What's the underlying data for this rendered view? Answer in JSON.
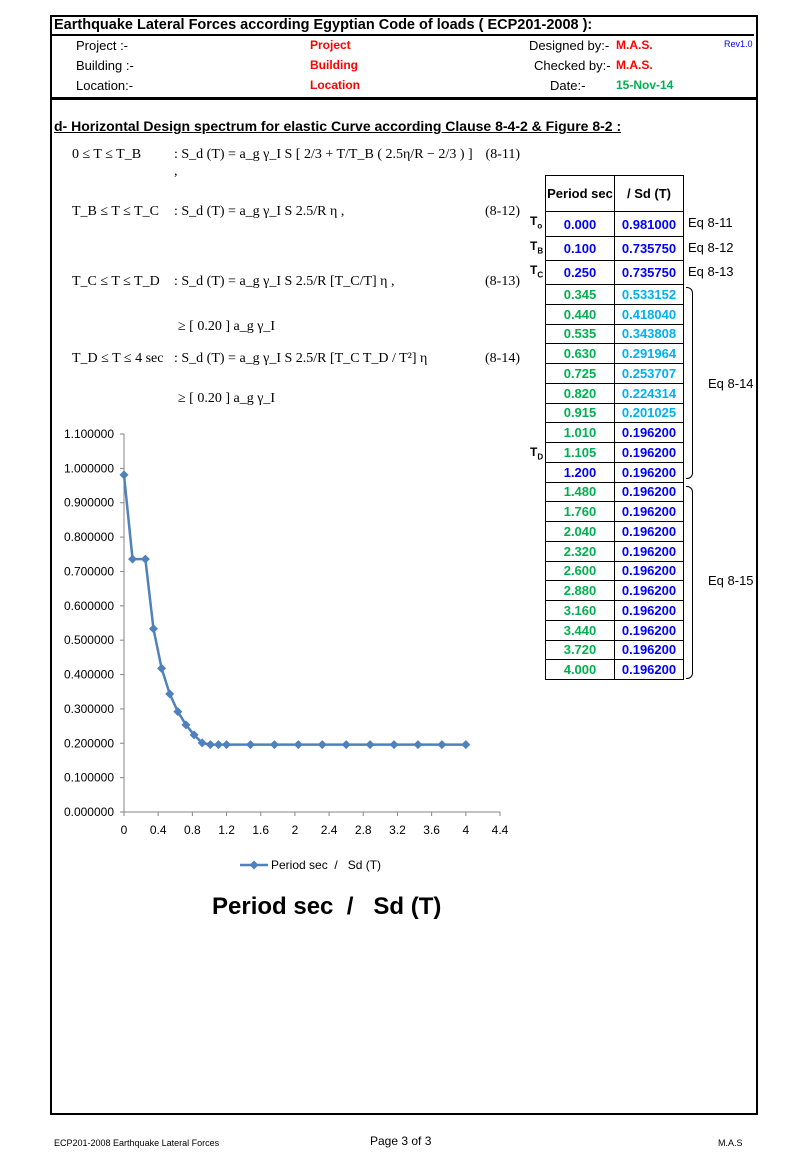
{
  "header": {
    "title": "Earthquake Lateral Forces according Egyptian Code of loads ( ECP201-2008 ):",
    "project_label": "Project :-",
    "project_value": "Project",
    "building_label": "Building :-",
    "building_value": "Building",
    "location_label": "Location:-",
    "location_value": "Location",
    "designed_label": "Designed by:-",
    "designed_value": "M.A.S.",
    "checked_label": "Checked by:-",
    "checked_value": "M.A.S.",
    "date_label": "Date:-",
    "date_value": "15-Nov-14",
    "rev": "Rev1.0"
  },
  "section_title": "d- Horizontal Design spectrum for elastic Curve according Clause 8-4-2 & Figure 8-2 :",
  "formulas": [
    {
      "cond": "0 ≤  T  ≤ T_B",
      "expr": ": S_d (T) = a_g γ_I S [ 2/3 + T/T_B ( 2.5η/R − 2/3 ) ] ,",
      "num": "(8-11)"
    },
    {
      "cond": "T_B ≤  T  ≤  T_C",
      "expr": ": S_d (T) = a_g γ_I S  2.5/R η  ,",
      "num": "(8-12)"
    },
    {
      "cond": "T_C ≤  T  ≤  T_D",
      "expr": ": S_d (T) = a_g γ_I S  2.5/R [T_C/T] η  ,",
      "num": "(8-13)"
    },
    {
      "cond": "",
      "expr": "≥ [ 0.20 ] a_g γ_I",
      "num": ""
    },
    {
      "cond": "T_D ≤  T  ≤ 4 sec",
      "expr": ": S_d (T) = a_g γ_I S  2.5/R [T_C T_D / T²] η",
      "num": "(8-14)"
    },
    {
      "cond": "",
      "expr": "≥ [ 0.20 ] a_g γ_I",
      "num": ""
    }
  ],
  "table": {
    "col1": "Period sec",
    "col2": "/  Sd (T)",
    "row_labels": [
      "To",
      "TB",
      "TC",
      "",
      "",
      "",
      "",
      "",
      "",
      "",
      "",
      "TD"
    ],
    "eq_labels": [
      "Eq 8-11",
      "Eq 8-12",
      "Eq 8-13"
    ],
    "brace_labels": [
      "Eq 8-14",
      "Eq 8-15"
    ]
  },
  "chart_data": {
    "type": "line",
    "title": "Period sec  /   Sd (T)",
    "x": [
      0,
      0.1,
      0.25,
      0.345,
      0.44,
      0.535,
      0.63,
      0.725,
      0.82,
      0.915,
      1.01,
      1.105,
      1.2,
      1.48,
      1.76,
      2.04,
      2.32,
      2.6,
      2.88,
      3.16,
      3.44,
      3.72,
      4.0
    ],
    "series": [
      {
        "name": "Period sec  /   Sd (T)",
        "values": [
          0.981,
          0.73575,
          0.73575,
          0.533152,
          0.41804,
          0.343808,
          0.291964,
          0.253707,
          0.224314,
          0.201025,
          0.1962,
          0.1962,
          0.1962,
          0.1962,
          0.1962,
          0.1962,
          0.1962,
          0.1962,
          0.1962,
          0.1962,
          0.1962,
          0.1962,
          0.1962
        ]
      }
    ],
    "xlim": [
      0,
      4.4
    ],
    "ylim": [
      0,
      1.1
    ],
    "xticks": [
      "0",
      "0.4",
      "0.8",
      "1.2",
      "1.6",
      "2",
      "2.4",
      "2.8",
      "3.2",
      "3.6",
      "4",
      "4.4"
    ],
    "yticks": [
      "0.000000",
      "0.100000",
      "0.200000",
      "0.300000",
      "0.400000",
      "0.500000",
      "0.600000",
      "0.700000",
      "0.800000",
      "0.900000",
      "1.000000",
      "1.100000"
    ],
    "legend": "bottom",
    "grid": false,
    "color": "#4f81bd"
  },
  "footer": {
    "left": "ECP201-2008 Earthquake Lateral Forces",
    "center": "Page 3 of 3",
    "right": "M.A.S"
  }
}
